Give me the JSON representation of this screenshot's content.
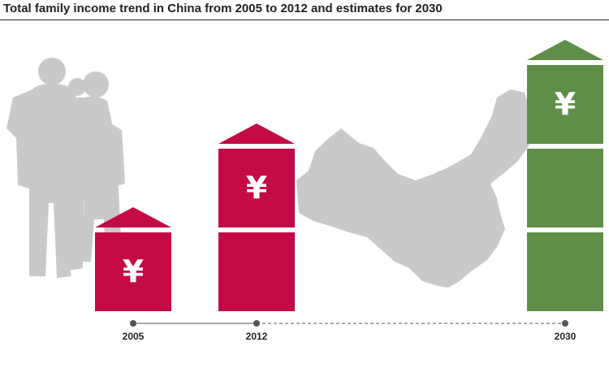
{
  "chart_data": {
    "type": "bar",
    "title": "Total family income trend in China from 2005 to 2012 and estimates for 2030",
    "categories": [
      "2005",
      "2012",
      "2030"
    ],
    "values": [
      1,
      2,
      3
    ],
    "unit_symbol": "¥",
    "value_meaning": "number of stacked ¥ blocks per bar",
    "estimate_categories": [
      "2030"
    ],
    "colors": {
      "actual": "#c40a45",
      "estimate": "#5f8f47",
      "background_art": "#c9c9c9",
      "timeline": "#555555"
    },
    "timeline_style": {
      "actual": "solid",
      "estimate": "dashed"
    },
    "grid": false
  }
}
